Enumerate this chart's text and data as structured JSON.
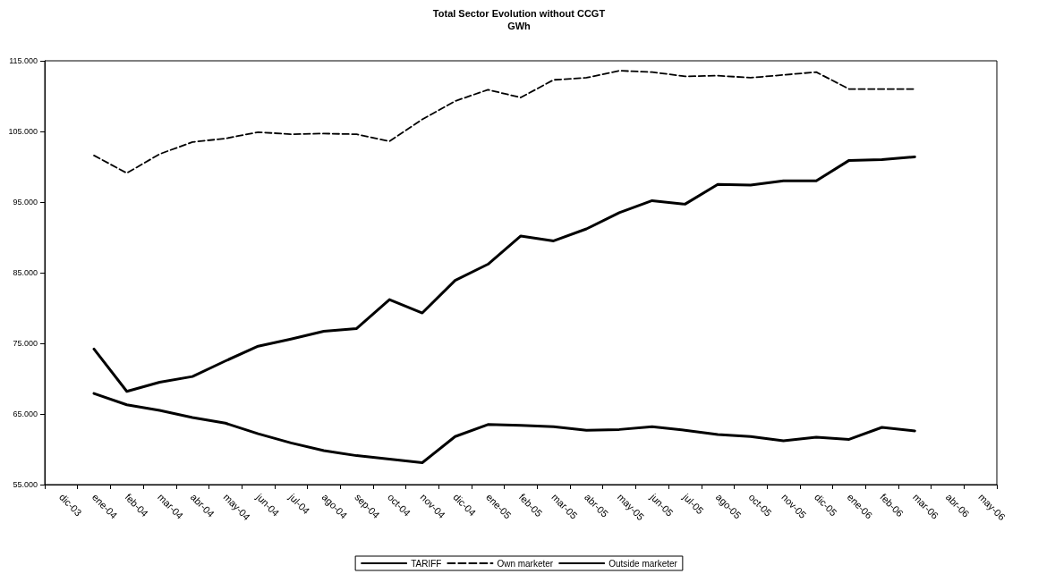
{
  "chart_data": {
    "type": "line",
    "title": "Total Sector Evolution without CCGT",
    "subtitle": "GWh",
    "categories": [
      "dic-03",
      "ene-04",
      "feb-04",
      "mar-04",
      "abr-04",
      "may-04",
      "jun-04",
      "jul-04",
      "ago-04",
      "sep-04",
      "oct-04",
      "nov-04",
      "dic-04",
      "ene-05",
      "feb-05",
      "mar-05",
      "abr-05",
      "may-05",
      "jun-05",
      "jul-05",
      "ago-05",
      "oct-05",
      "nov-05",
      "dic-05",
      "ene-06",
      "feb-06",
      "mar-06",
      "abr-06",
      "may-06"
    ],
    "series": [
      {
        "name": "TARIFF",
        "color": "#000000",
        "line_style": "solid",
        "values": [
          null,
          74200,
          68200,
          69500,
          70300,
          72500,
          74600,
          75600,
          76700,
          77100,
          81200,
          79300,
          83900,
          86200,
          90200,
          89500,
          91200,
          93500,
          95200,
          94700,
          97500,
          97400,
          98000,
          98000,
          100900,
          101000,
          101400,
          null,
          null
        ]
      },
      {
        "name": "Own marketer",
        "color": "#000000",
        "line_style": "dashed",
        "values": [
          null,
          101600,
          99100,
          101800,
          103500,
          104000,
          104900,
          104600,
          104700,
          104600,
          103600,
          106700,
          109300,
          110900,
          109800,
          112300,
          112600,
          113600,
          113400,
          112800,
          112900,
          112600,
          113000,
          113400,
          111000,
          111000,
          111000,
          null,
          null
        ]
      },
      {
        "name": "Outside marketer",
        "color": "#000000",
        "line_style": "solid",
        "values": [
          null,
          67900,
          66300,
          65500,
          64500,
          63700,
          62200,
          60900,
          59800,
          59100,
          58600,
          58100,
          61800,
          63500,
          63400,
          63200,
          62700,
          62800,
          63200,
          62700,
          62100,
          61800,
          61200,
          61700,
          61400,
          63100,
          62600,
          null,
          null
        ]
      }
    ],
    "ylim": [
      55000,
      115000
    ],
    "yticks": [
      {
        "value": 55000,
        "label": "55.000"
      },
      {
        "value": 65000,
        "label": "65.000"
      },
      {
        "value": 75000,
        "label": "75.000"
      },
      {
        "value": 85000,
        "label": "85.000"
      },
      {
        "value": 95000,
        "label": "95.000"
      },
      {
        "value": 105000,
        "label": "105.000"
      },
      {
        "value": 115000,
        "label": "115.000"
      }
    ],
    "grid": false,
    "legend": "bottom",
    "marker": "none"
  }
}
